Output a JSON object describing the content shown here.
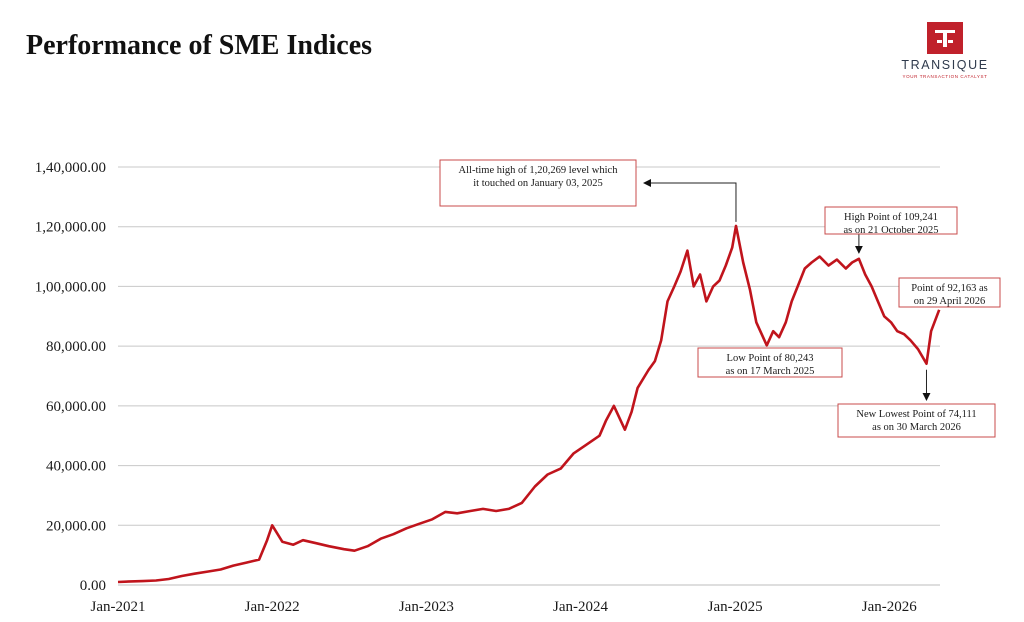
{
  "header": {
    "title": "Performance of SME Indices"
  },
  "logo": {
    "name": "TRANSIQUE",
    "tagline": "YOUR TRANSACTION CATALYST",
    "color": "#c0212b"
  },
  "chart_data": {
    "type": "line",
    "title": "Performance of SME Indices",
    "xlabel": "",
    "ylabel": "",
    "ylim": [
      0,
      140000
    ],
    "y_ticks": [
      0,
      20000,
      40000,
      60000,
      80000,
      100000,
      120000,
      140000
    ],
    "y_tick_labels": [
      "0.00",
      "20,000.00",
      "40,000.00",
      "60,000.00",
      "80,000.00",
      "1,00,000.00",
      "1,20,000.00",
      "1,40,000.00"
    ],
    "x_ticks": [
      "2021-01-01",
      "2022-01-01",
      "2023-01-01",
      "2024-01-01",
      "2025-01-01",
      "2026-01-01"
    ],
    "x_tick_labels": [
      "Jan-2021",
      "Jan-2022",
      "Jan-2023",
      "Jan-2024",
      "Jan-2025",
      "Jan-2026"
    ],
    "grid": "horizontal",
    "line_color": "#c0141c",
    "series": [
      {
        "x": [
          "2021-01-01",
          "2021-02-01",
          "2021-03-01",
          "2021-04-01",
          "2021-05-01",
          "2021-06-01",
          "2021-07-01",
          "2021-08-01",
          "2021-09-01",
          "2021-10-01",
          "2021-11-01",
          "2021-12-01",
          "2021-12-20",
          "2022-01-01",
          "2022-01-25",
          "2022-02-20",
          "2022-03-15",
          "2022-04-15",
          "2022-05-15",
          "2022-06-20",
          "2022-07-15",
          "2022-08-15",
          "2022-09-15",
          "2022-10-15",
          "2022-11-15",
          "2022-12-15",
          "2023-01-15",
          "2023-02-15",
          "2023-03-15",
          "2023-04-15",
          "2023-05-15",
          "2023-06-15",
          "2023-07-15",
          "2023-08-15",
          "2023-09-15",
          "2023-10-15",
          "2023-11-15",
          "2023-12-15",
          "2024-01-15",
          "2024-02-15",
          "2024-03-01",
          "2024-03-20",
          "2024-04-15",
          "2024-05-01",
          "2024-05-15",
          "2024-06-10",
          "2024-06-25",
          "2024-07-10",
          "2024-07-25",
          "2024-08-10",
          "2024-08-25",
          "2024-09-10",
          "2024-09-25",
          "2024-10-10",
          "2024-10-25",
          "2024-11-10",
          "2024-11-25",
          "2024-12-10",
          "2024-12-25",
          "2025-01-03",
          "2025-01-20",
          "2025-02-05",
          "2025-02-20",
          "2025-03-05",
          "2025-03-17",
          "2025-04-01",
          "2025-04-15",
          "2025-05-01",
          "2025-05-15",
          "2025-06-01",
          "2025-06-15",
          "2025-07-01",
          "2025-07-20",
          "2025-08-10",
          "2025-08-30",
          "2025-09-20",
          "2025-10-05",
          "2025-10-21",
          "2025-11-05",
          "2025-11-20",
          "2025-12-05",
          "2025-12-20",
          "2026-01-05",
          "2026-01-20",
          "2026-02-05",
          "2026-02-20",
          "2026-03-10",
          "2026-03-30",
          "2026-04-10",
          "2026-04-29"
        ],
        "y": [
          1000,
          1200,
          1300,
          1500,
          2000,
          3000,
          3800,
          4500,
          5200,
          6500,
          7500,
          8500,
          15000,
          20000,
          14500,
          13500,
          15000,
          14000,
          13000,
          12000,
          11500,
          13000,
          15500,
          17000,
          19000,
          20500,
          22000,
          24500,
          24000,
          24800,
          25500,
          24800,
          25500,
          27500,
          33000,
          37000,
          39000,
          44000,
          47000,
          50000,
          55000,
          60000,
          52000,
          58000,
          66000,
          72000,
          75000,
          82000,
          95000,
          100000,
          105000,
          112000,
          100000,
          104000,
          95000,
          100000,
          102000,
          107000,
          113000,
          120269,
          108000,
          99000,
          88000,
          84000,
          80243,
          85000,
          83000,
          88000,
          95000,
          101000,
          106000,
          108000,
          110000,
          107000,
          109000,
          106000,
          108000,
          109241,
          104000,
          100000,
          95000,
          90000,
          88000,
          85000,
          84000,
          82000,
          79000,
          74111,
          85000,
          92163
        ]
      }
    ],
    "annotations": [
      {
        "label": "All-time high of 1,20,269 level which it touched on January 03, 2025",
        "x": "2025-01-03",
        "y": 120269
      },
      {
        "label": "High Point of 109,241 as on 21 October 2025",
        "x": "2025-10-21",
        "y": 109241
      },
      {
        "label": "Point of 92,163 as on 29 April 2026",
        "x": "2026-04-29",
        "y": 92163
      },
      {
        "label": "Low Point of 80,243 as on 17 March 2025",
        "x": "2025-03-17",
        "y": 80243
      },
      {
        "label": "New Lowest Point of 74,111 as on 30 March 2026",
        "x": "2026-03-30",
        "y": 74111
      }
    ]
  }
}
